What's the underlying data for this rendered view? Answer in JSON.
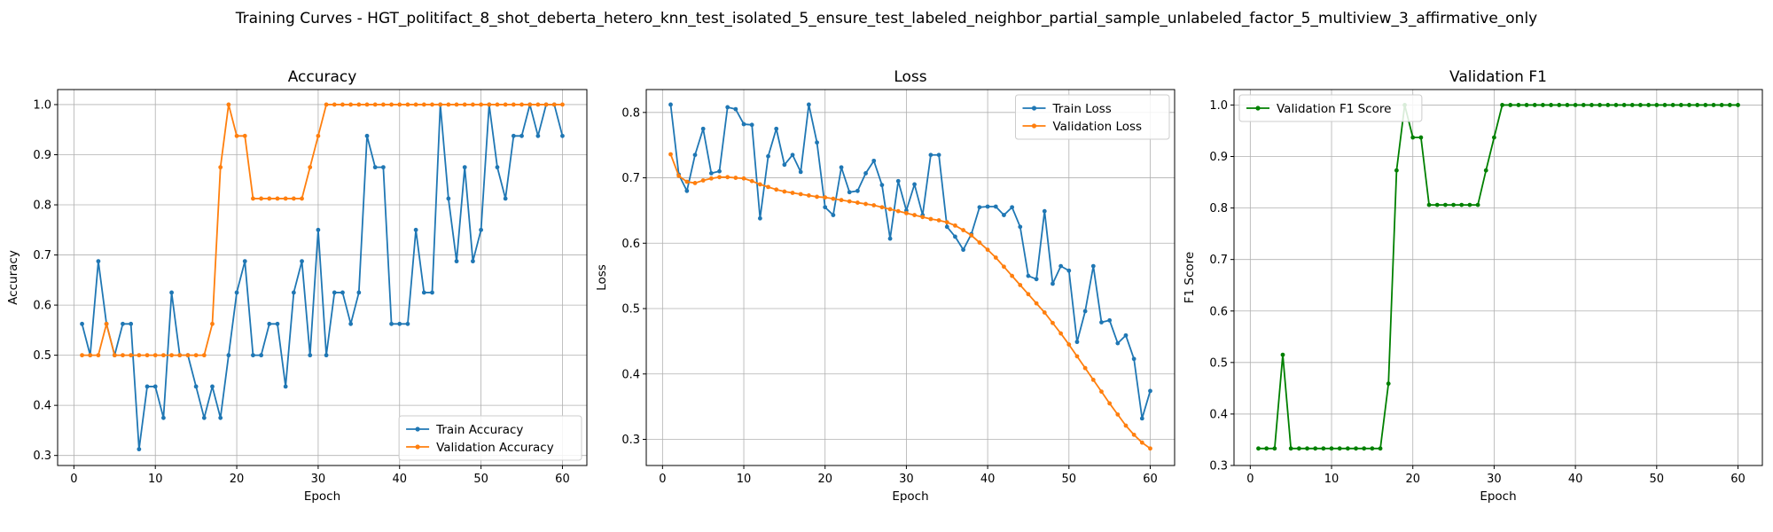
{
  "figure": {
    "title": "Training Curves - HGT_politifact_8_shot_deberta_hetero_knn_test_isolated_5_ensure_test_labeled_neighbor_partial_sample_unlabeled_factor_5_multiview_3_affirmative_only"
  },
  "colors": {
    "blue": "#1f77b4",
    "orange": "#ff7f0e",
    "green": "#008000",
    "grid": "#b0b0b0"
  },
  "chart_data": [
    {
      "type": "line",
      "title": "Accuracy",
      "xlabel": "Epoch",
      "ylabel": "Accuracy",
      "xlim": [
        -2.0,
        63.0
      ],
      "ylim": [
        0.28,
        1.03
      ],
      "xticks": [
        0,
        10,
        20,
        30,
        40,
        50,
        60
      ],
      "yticks": [
        0.3,
        0.4,
        0.5,
        0.6,
        0.7,
        0.8,
        0.9,
        1.0
      ],
      "grid": true,
      "legend_position": "lower-right",
      "series": [
        {
          "name": "Train Accuracy",
          "color": "#1f77b4",
          "values": [
            0.5625,
            0.5,
            0.6875,
            0.5625,
            0.5,
            0.5625,
            0.5625,
            0.3125,
            0.4375,
            0.4375,
            0.375,
            0.625,
            0.5,
            0.5,
            0.4375,
            0.375,
            0.4375,
            0.375,
            0.5,
            0.625,
            0.6875,
            0.5,
            0.5,
            0.5625,
            0.5625,
            0.4375,
            0.625,
            0.6875,
            0.5,
            0.75,
            0.5,
            0.625,
            0.625,
            0.5625,
            0.625,
            0.9375,
            0.875,
            0.875,
            0.5625,
            0.5625,
            0.5625,
            0.75,
            0.625,
            0.625,
            1.0,
            0.8125,
            0.6875,
            0.875,
            0.6875,
            0.75,
            1.0,
            0.875,
            0.8125,
            0.9375,
            0.9375,
            1.0,
            0.9375,
            1.0,
            1.0,
            0.9375
          ]
        },
        {
          "name": "Validation Accuracy",
          "color": "#ff7f0e",
          "values": [
            0.5,
            0.5,
            0.5,
            0.5625,
            0.5,
            0.5,
            0.5,
            0.5,
            0.5,
            0.5,
            0.5,
            0.5,
            0.5,
            0.5,
            0.5,
            0.5,
            0.5625,
            0.875,
            1.0,
            0.9375,
            0.9375,
            0.8125,
            0.8125,
            0.8125,
            0.8125,
            0.8125,
            0.8125,
            0.8125,
            0.875,
            0.9375,
            1.0,
            1.0,
            1.0,
            1.0,
            1.0,
            1.0,
            1.0,
            1.0,
            1.0,
            1.0,
            1.0,
            1.0,
            1.0,
            1.0,
            1.0,
            1.0,
            1.0,
            1.0,
            1.0,
            1.0,
            1.0,
            1.0,
            1.0,
            1.0,
            1.0,
            1.0,
            1.0,
            1.0,
            1.0,
            1.0
          ]
        }
      ]
    },
    {
      "type": "line",
      "title": "Loss",
      "xlabel": "Epoch",
      "ylabel": "Loss",
      "xlim": [
        -2.0,
        63.0
      ],
      "ylim": [
        0.26,
        0.835
      ],
      "xticks": [
        0,
        10,
        20,
        30,
        40,
        50,
        60
      ],
      "yticks": [
        0.3,
        0.4,
        0.5,
        0.6,
        0.7,
        0.8
      ],
      "grid": true,
      "legend_position": "upper-right",
      "series": [
        {
          "name": "Train Loss",
          "color": "#1f77b4",
          "values": [
            0.812,
            0.705,
            0.68,
            0.735,
            0.775,
            0.707,
            0.71,
            0.808,
            0.805,
            0.782,
            0.781,
            0.638,
            0.733,
            0.775,
            0.72,
            0.735,
            0.709,
            0.812,
            0.754,
            0.655,
            0.643,
            0.716,
            0.678,
            0.68,
            0.707,
            0.726,
            0.689,
            0.607,
            0.695,
            0.65,
            0.69,
            0.643,
            0.735,
            0.735,
            0.625,
            0.61,
            0.59,
            0.614,
            0.655,
            0.656,
            0.656,
            0.643,
            0.655,
            0.625,
            0.55,
            0.545,
            0.649,
            0.538,
            0.565,
            0.558,
            0.449,
            0.496,
            0.565,
            0.479,
            0.482,
            0.447,
            0.459,
            0.423,
            0.332,
            0.374
          ]
        },
        {
          "name": "Validation Loss",
          "color": "#ff7f0e",
          "values": [
            0.736,
            0.703,
            0.694,
            0.692,
            0.696,
            0.699,
            0.701,
            0.701,
            0.7,
            0.699,
            0.695,
            0.69,
            0.686,
            0.682,
            0.679,
            0.677,
            0.675,
            0.673,
            0.671,
            0.67,
            0.668,
            0.666,
            0.664,
            0.662,
            0.66,
            0.658,
            0.655,
            0.652,
            0.649,
            0.646,
            0.643,
            0.64,
            0.637,
            0.635,
            0.632,
            0.627,
            0.62,
            0.612,
            0.601,
            0.59,
            0.578,
            0.564,
            0.55,
            0.536,
            0.522,
            0.508,
            0.494,
            0.478,
            0.462,
            0.445,
            0.427,
            0.409,
            0.391,
            0.373,
            0.355,
            0.338,
            0.321,
            0.307,
            0.295,
            0.286
          ]
        }
      ]
    },
    {
      "type": "line",
      "title": "Validation F1",
      "xlabel": "Epoch",
      "ylabel": "F1 Score",
      "xlim": [
        -2.0,
        63.0
      ],
      "ylim": [
        0.3,
        1.03
      ],
      "xticks": [
        0,
        10,
        20,
        30,
        40,
        50,
        60
      ],
      "yticks": [
        0.3,
        0.4,
        0.5,
        0.6,
        0.7,
        0.8,
        0.9,
        1.0
      ],
      "grid": true,
      "legend_position": "upper-left",
      "series": [
        {
          "name": "Validation F1 Score",
          "color": "#008000",
          "values": [
            0.333,
            0.333,
            0.333,
            0.515,
            0.333,
            0.333,
            0.333,
            0.333,
            0.333,
            0.333,
            0.333,
            0.333,
            0.333,
            0.333,
            0.333,
            0.333,
            0.459,
            0.873,
            1.0,
            0.937,
            0.937,
            0.806,
            0.806,
            0.806,
            0.806,
            0.806,
            0.806,
            0.806,
            0.873,
            0.937,
            1.0,
            1.0,
            1.0,
            1.0,
            1.0,
            1.0,
            1.0,
            1.0,
            1.0,
            1.0,
            1.0,
            1.0,
            1.0,
            1.0,
            1.0,
            1.0,
            1.0,
            1.0,
            1.0,
            1.0,
            1.0,
            1.0,
            1.0,
            1.0,
            1.0,
            1.0,
            1.0,
            1.0,
            1.0,
            1.0
          ]
        }
      ]
    }
  ]
}
